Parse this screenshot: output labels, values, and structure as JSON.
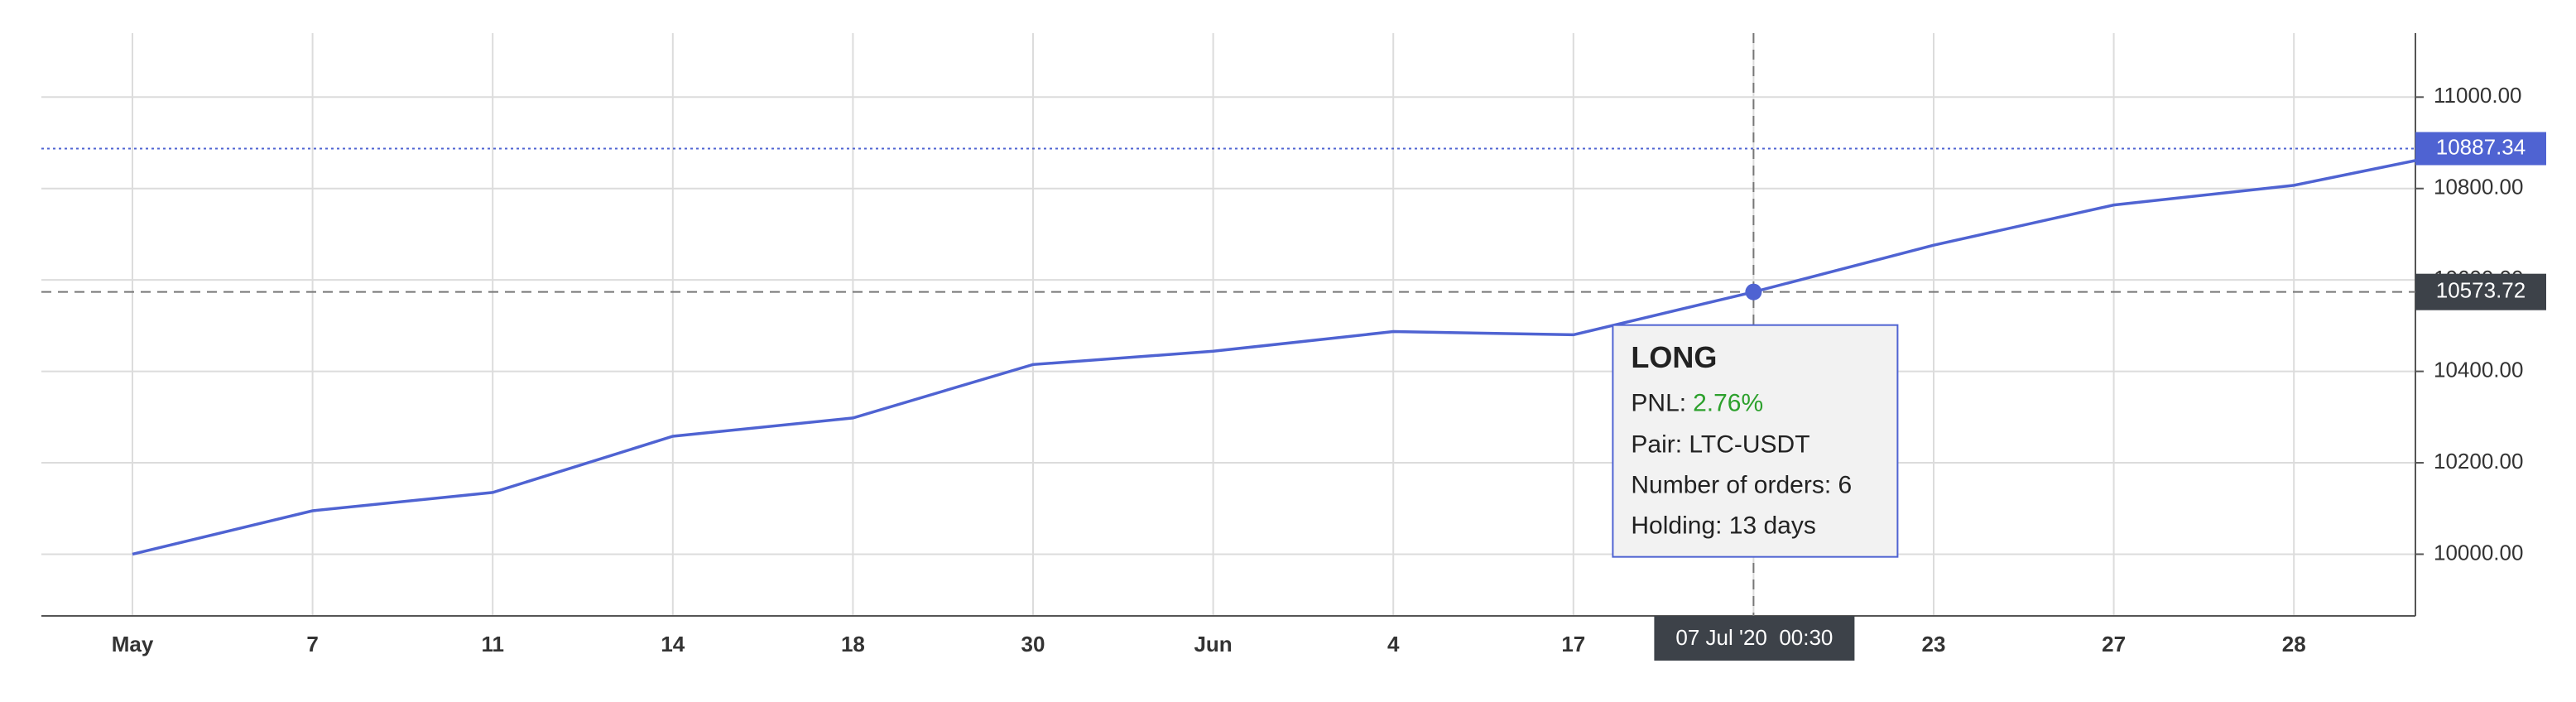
{
  "chart_data": {
    "type": "line",
    "categories": [
      "May",
      "7",
      "11",
      "14",
      "18",
      "30",
      "Jun",
      "4",
      "17",
      null,
      "23",
      "27",
      "28",
      null
    ],
    "series": [
      {
        "color": "#4f63d2",
        "values": [
          10000,
          10095,
          10135,
          10258,
          10298,
          10415,
          10444,
          10487,
          10480,
          10573.72,
          10676,
          10764,
          10807,
          10887.34
        ]
      }
    ],
    "ylim": [
      9865,
      11140
    ],
    "yticks": [
      {
        "value": 10000,
        "label": "10000.00"
      },
      {
        "value": 10200,
        "label": "10200.00"
      },
      {
        "value": 10400,
        "label": "10400.00"
      },
      {
        "value": 10600,
        "label": "10600.00"
      },
      {
        "value": 10800,
        "label": "10800.00"
      },
      {
        "value": 11000,
        "label": "11000.00"
      }
    ],
    "grid": true,
    "hover_index": 9,
    "hover_label": "07 Jul '20  00:30",
    "tooltip": {
      "title": "LONG",
      "pnl_label": "PNL:",
      "pnl": "2.76%",
      "pnl_color": "#2ca02c",
      "lines": [
        "Pair: LTC-USDT",
        "Number of orders: 6",
        "Holding: 13 days"
      ]
    }
  }
}
